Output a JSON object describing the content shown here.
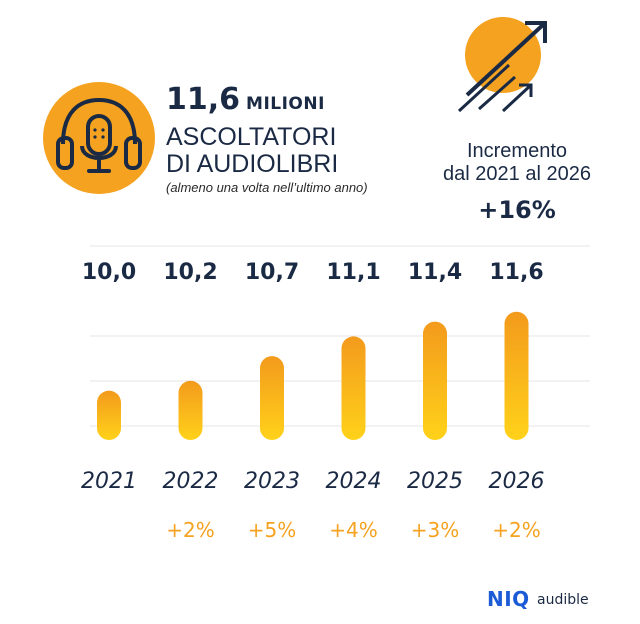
{
  "header": {
    "big_number": "11,6",
    "big_number_unit": "MILIONI",
    "headline_line1": "ASCOLTATORI",
    "headline_line2": "DI AUDIOLIBRI",
    "note": "(almeno una volta nell’ultimo anno)"
  },
  "increment": {
    "label_line1": "Incremento",
    "label_line2": "dal 2021 al 2026",
    "value": "+16%"
  },
  "colors": {
    "accent": "#F4A21F",
    "bar_top": "#F39A1C",
    "bar_bottom": "#FFD21A",
    "text": "#1B2A44",
    "grid": "#E6E6E6"
  },
  "chart_data": {
    "type": "bar",
    "title": "Ascoltatori di audiolibri (milioni)",
    "categories": [
      "2021",
      "2022",
      "2023",
      "2024",
      "2025",
      "2026"
    ],
    "values": [
      10.0,
      10.2,
      10.7,
      11.1,
      11.4,
      11.6
    ],
    "value_labels": [
      "10,0",
      "10,2",
      "10,7",
      "11,1",
      "11,4",
      "11,6"
    ],
    "growth_labels": [
      "",
      "+2%",
      "+5%",
      "+4%",
      "+3%",
      "+2%"
    ],
    "ylim": [
      9.0,
      12.0
    ],
    "grid": true,
    "xlabel": "",
    "ylabel": ""
  },
  "footer": {
    "logo_niq": "NIQ",
    "logo_audible": "audible"
  }
}
